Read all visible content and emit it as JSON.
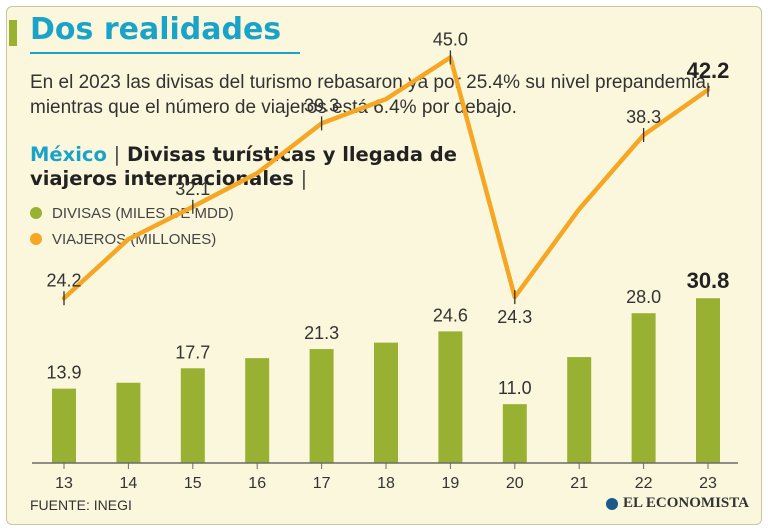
{
  "header": {
    "title": "Dos realidades",
    "subtitle": "En el 2023 las divisas del turismo rebasaron ya por 25.4% su nivel prepandemia, mientras que el número de viajeros está 6.4% por debajo.",
    "chart_title_place": "México",
    "chart_title_separator": "|",
    "chart_title_text": "Divisas turísticas y llegada de viajeros internacionales",
    "chart_title_end": "|"
  },
  "footer": {
    "source": "FUENTE: INEGI",
    "brand": "EL ECONOMISTA"
  },
  "colors": {
    "accent": "#1aa3c8",
    "bars": "#99b133",
    "line": "#f5a623",
    "background": "#fbf7dc"
  },
  "chart_data": {
    "type": "bar+line",
    "title": "México | Divisas turísticas y llegada de viajeros internacionales",
    "categories": [
      "13",
      "14",
      "15",
      "16",
      "17",
      "18",
      "19",
      "20",
      "21",
      "22",
      "23"
    ],
    "series": [
      {
        "name": "DIVISAS (MILES DE MDD)",
        "type": "bar",
        "values": [
          13.9,
          15.0,
          17.7,
          19.6,
          21.3,
          22.5,
          24.6,
          11.0,
          19.8,
          28.0,
          30.8
        ],
        "labels": [
          "13.9",
          "",
          "17.7",
          "",
          "21.3",
          "",
          "24.6",
          "11.0",
          "",
          "28.0",
          "30.8"
        ]
      },
      {
        "name": "VIAJEROS (MILLONES)",
        "type": "line",
        "values": [
          24.2,
          29.3,
          32.1,
          35.0,
          39.3,
          41.4,
          45.0,
          24.3,
          31.9,
          38.3,
          42.2
        ],
        "labels": [
          "24.2",
          "",
          "32.1",
          "",
          "39.3",
          "",
          "45.0",
          "24.3",
          "",
          "38.3",
          "42.2"
        ]
      }
    ],
    "xlabel": "",
    "ylabel": "",
    "grid": false,
    "legend": "top-left"
  }
}
